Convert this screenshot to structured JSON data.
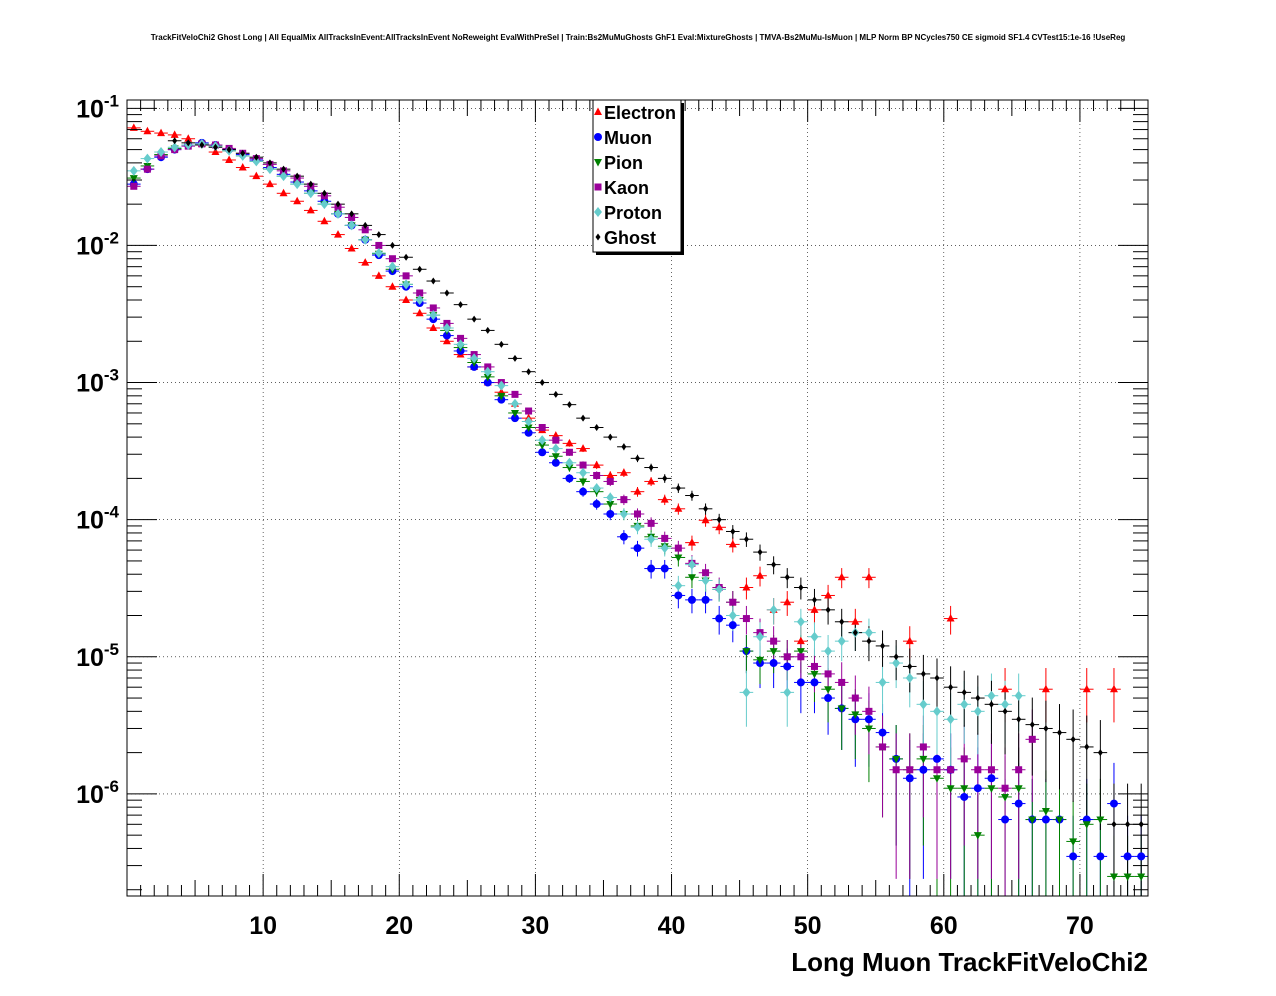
{
  "chart_data": {
    "type": "scatter",
    "title": "TrackFitVeloChi2 Ghost Long | All EqualMix AllTracksInEvent:AllTracksInEvent NoReweight EvalWithPreSel | Train:Bs2MuMuGhosts GhF1 Eval:MixtureGhosts | TMVA-Bs2MuMu-IsMuon | MLP Norm BP NCycles750 CE sigmoid SF1.4 CVTest15:1e-16 !UseReg",
    "xlabel": "Long Muon TrackFitVeloChi2",
    "ylabel": "",
    "xlim": [
      0,
      75
    ],
    "ylim": [
      1.8e-07,
      0.115
    ],
    "yscale": "log",
    "grid": true,
    "legend_position": "top-center",
    "x_ticks": [
      {
        "value": 10,
        "label": "10"
      },
      {
        "value": 20,
        "label": "20"
      },
      {
        "value": 30,
        "label": "30"
      },
      {
        "value": 40,
        "label": "40"
      },
      {
        "value": 50,
        "label": "50"
      },
      {
        "value": 60,
        "label": "60"
      },
      {
        "value": 70,
        "label": "70"
      }
    ],
    "y_ticks": [
      {
        "value": 0.1,
        "base": "10",
        "exp": "-1"
      },
      {
        "value": 0.01,
        "base": "10",
        "exp": "-2"
      },
      {
        "value": 0.001,
        "base": "10",
        "exp": "-3"
      },
      {
        "value": 0.0001,
        "base": "10",
        "exp": "-4"
      },
      {
        "value": 1e-05,
        "base": "10",
        "exp": "-5"
      },
      {
        "value": 1e-06,
        "base": "10",
        "exp": "-6"
      }
    ],
    "series": [
      {
        "name": "Electron",
        "color": "#ff0000",
        "marker": "triangle-up",
        "x": [
          0.5,
          1.5,
          2.5,
          3.5,
          4.5,
          5.5,
          6.5,
          7.5,
          8.5,
          9.5,
          10.5,
          11.5,
          12.5,
          13.5,
          14.5,
          15.5,
          16.5,
          17.5,
          18.5,
          19.5,
          20.5,
          21.5,
          22.5,
          23.5,
          24.5,
          25.5,
          26.5,
          27.5,
          28.5,
          29.5,
          30.5,
          31.5,
          32.5,
          33.5,
          34.5,
          35.5,
          36.5,
          37.5,
          38.5,
          39.5,
          40.5,
          41.5,
          42.5,
          43.5,
          44.5,
          45.5,
          46.5,
          47.5,
          48.5,
          49.5,
          50.5,
          51.5,
          52.5,
          53.5,
          54.5,
          57.5,
          60.5,
          64.5,
          67.5,
          70.5,
          72.5
        ],
        "y": [
          0.072,
          0.068,
          0.066,
          0.064,
          0.06,
          0.055,
          0.048,
          0.042,
          0.037,
          0.032,
          0.028,
          0.024,
          0.021,
          0.018,
          0.015,
          0.012,
          0.0095,
          0.0075,
          0.006,
          0.005,
          0.004,
          0.0032,
          0.0025,
          0.002,
          0.0016,
          0.0013,
          0.001,
          0.00085,
          0.0007,
          0.00055,
          0.00045,
          0.00041,
          0.00036,
          0.00033,
          0.00025,
          0.00021,
          0.00022,
          0.00016,
          0.00019,
          0.00014,
          0.00012,
          6.8e-05,
          9.9e-05,
          8.8e-05,
          6.6e-05,
          3.2e-05,
          3.9e-05,
          2.2e-05,
          2.5e-05,
          1.3e-05,
          2.2e-05,
          2.8e-05,
          3.8e-05,
          1.8e-05,
          3.8e-05,
          1.3e-05,
          1.9e-05,
          5.8e-06,
          5.8e-06,
          5.8e-06,
          5.8e-06
        ]
      },
      {
        "name": "Muon",
        "color": "#0000ff",
        "marker": "circle",
        "x": [
          0.5,
          1.5,
          2.5,
          3.5,
          4.5,
          5.5,
          6.5,
          7.5,
          8.5,
          9.5,
          10.5,
          11.5,
          12.5,
          13.5,
          14.5,
          15.5,
          16.5,
          17.5,
          18.5,
          19.5,
          20.5,
          21.5,
          22.5,
          23.5,
          24.5,
          25.5,
          26.5,
          27.5,
          28.5,
          29.5,
          30.5,
          31.5,
          32.5,
          33.5,
          34.5,
          35.5,
          36.5,
          37.5,
          38.5,
          39.5,
          40.5,
          41.5,
          42.5,
          43.5,
          44.5,
          45.5,
          46.5,
          47.5,
          48.5,
          49.5,
          50.5,
          51.5,
          52.5,
          53.5,
          54.5,
          55.5,
          56.5,
          57.5,
          58.5,
          59.5,
          60.5,
          61.5,
          62.5,
          63.5,
          64.5,
          65.5,
          66.5,
          67.5,
          68.5,
          69.5,
          70.5,
          71.5,
          72.5,
          73.5,
          74.5
        ],
        "y": [
          0.028,
          0.036,
          0.044,
          0.05,
          0.054,
          0.056,
          0.054,
          0.05,
          0.046,
          0.042,
          0.037,
          0.033,
          0.029,
          0.025,
          0.021,
          0.017,
          0.014,
          0.011,
          0.0085,
          0.0065,
          0.005,
          0.0038,
          0.0029,
          0.0022,
          0.0017,
          0.0013,
          0.001,
          0.00075,
          0.00055,
          0.00043,
          0.00031,
          0.00026,
          0.0002,
          0.00016,
          0.00013,
          0.00011,
          7.5e-05,
          6.2e-05,
          4.4e-05,
          4.4e-05,
          2.8e-05,
          2.6e-05,
          2.6e-05,
          1.9e-05,
          1.7e-05,
          1.1e-05,
          9e-06,
          9e-06,
          8.5e-06,
          6.5e-06,
          6.5e-06,
          5e-06,
          4.2e-06,
          3.5e-06,
          3.5e-06,
          2.8e-06,
          1.8e-06,
          1.3e-06,
          1.5e-06,
          1.8e-06,
          1.5e-06,
          9.5e-07,
          1.1e-06,
          1.3e-06,
          6.5e-07,
          8.5e-07,
          6.5e-07,
          6.5e-07,
          6.5e-07,
          3.5e-07,
          6.5e-07,
          3.5e-07,
          8.5e-07,
          3.5e-07,
          3.5e-07
        ]
      },
      {
        "name": "Pion",
        "color": "#008000",
        "marker": "triangle-down",
        "x": [
          0.5,
          1.5,
          2.5,
          3.5,
          4.5,
          5.5,
          6.5,
          7.5,
          8.5,
          9.5,
          10.5,
          11.5,
          12.5,
          13.5,
          14.5,
          15.5,
          16.5,
          17.5,
          18.5,
          19.5,
          20.5,
          21.5,
          22.5,
          23.5,
          24.5,
          25.5,
          26.5,
          27.5,
          28.5,
          29.5,
          30.5,
          31.5,
          32.5,
          33.5,
          34.5,
          35.5,
          36.5,
          37.5,
          38.5,
          39.5,
          40.5,
          41.5,
          42.5,
          43.5,
          44.5,
          45.5,
          46.5,
          47.5,
          48.5,
          49.5,
          50.5,
          51.5,
          52.5,
          53.5,
          54.5,
          55.5,
          56.5,
          57.5,
          58.5,
          59.5,
          60.5,
          61.5,
          62.5,
          63.5,
          64.5,
          65.5,
          66.5,
          67.5,
          68.5,
          69.5,
          70.5,
          71.5,
          72.5,
          73.5,
          74.5
        ],
        "y": [
          0.031,
          0.038,
          0.046,
          0.051,
          0.054,
          0.055,
          0.053,
          0.049,
          0.045,
          0.041,
          0.036,
          0.032,
          0.028,
          0.024,
          0.02,
          0.017,
          0.014,
          0.011,
          0.0087,
          0.0067,
          0.0052,
          0.004,
          0.0031,
          0.0024,
          0.0018,
          0.0014,
          0.0011,
          0.0008,
          0.0006,
          0.00047,
          0.00035,
          0.00029,
          0.00024,
          0.00019,
          0.00016,
          0.00013,
          0.00011,
          9e-05,
          7.5e-05,
          6.4e-05,
          5.3e-05,
          3.8e-05,
          3.6e-05,
          3.1e-05,
          2.5e-05,
          1.1e-05,
          9.5e-06,
          1.1e-05,
          1e-05,
          1.1e-05,
          7.5e-06,
          5.8e-06,
          4.2e-06,
          3.8e-06,
          3e-06,
          2.2e-06,
          1.8e-06,
          1.5e-06,
          1.8e-06,
          1.3e-06,
          1.1e-06,
          1.1e-06,
          5e-07,
          1.1e-06,
          9.5e-07,
          1.1e-06,
          6.5e-07,
          7.5e-07,
          6.5e-07,
          4.5e-07,
          6e-07,
          6.5e-07,
          2.5e-07,
          2.5e-07,
          2.5e-07
        ]
      },
      {
        "name": "Kaon",
        "color": "#990099",
        "marker": "square",
        "x": [
          0.5,
          1.5,
          2.5,
          3.5,
          4.5,
          5.5,
          6.5,
          7.5,
          8.5,
          9.5,
          10.5,
          11.5,
          12.5,
          13.5,
          14.5,
          15.5,
          16.5,
          17.5,
          18.5,
          19.5,
          20.5,
          21.5,
          22.5,
          23.5,
          24.5,
          25.5,
          26.5,
          27.5,
          28.5,
          29.5,
          30.5,
          31.5,
          32.5,
          33.5,
          34.5,
          35.5,
          36.5,
          37.5,
          38.5,
          39.5,
          40.5,
          41.5,
          42.5,
          43.5,
          44.5,
          45.5,
          46.5,
          47.5,
          48.5,
          49.5,
          50.5,
          51.5,
          52.5,
          53.5,
          54.5,
          55.5,
          56.5,
          57.5,
          58.5,
          59.5,
          60.5,
          61.5,
          62.5,
          63.5,
          64.5,
          65.5,
          66.5
        ],
        "y": [
          0.027,
          0.036,
          0.045,
          0.05,
          0.053,
          0.055,
          0.054,
          0.051,
          0.047,
          0.043,
          0.039,
          0.035,
          0.031,
          0.027,
          0.023,
          0.019,
          0.016,
          0.013,
          0.01,
          0.008,
          0.006,
          0.0045,
          0.0035,
          0.0027,
          0.0021,
          0.0016,
          0.0013,
          0.001,
          0.00082,
          0.00062,
          0.00047,
          0.00038,
          0.00031,
          0.00025,
          0.00021,
          0.00019,
          0.00014,
          0.00011,
          9.4e-05,
          7.3e-05,
          6.2e-05,
          4.8e-05,
          4.1e-05,
          3.2e-05,
          2.5e-05,
          1.9e-05,
          1.5e-05,
          1.3e-05,
          1e-05,
          1e-05,
          8.5e-06,
          7.5e-06,
          6.5e-06,
          5e-06,
          4e-06,
          2.2e-06,
          1.5e-06,
          1.5e-06,
          2.2e-06,
          1.5e-06,
          1.5e-06,
          1.8e-06,
          1.5e-06,
          1.5e-06,
          1.1e-06,
          1.5e-06,
          2.5e-06
        ]
      },
      {
        "name": "Proton",
        "color": "#66cccc",
        "marker": "diamond",
        "x": [
          0.5,
          1.5,
          2.5,
          3.5,
          4.5,
          5.5,
          6.5,
          7.5,
          8.5,
          9.5,
          10.5,
          11.5,
          12.5,
          13.5,
          14.5,
          15.5,
          16.5,
          17.5,
          18.5,
          19.5,
          20.5,
          21.5,
          22.5,
          23.5,
          24.5,
          25.5,
          26.5,
          27.5,
          28.5,
          29.5,
          30.5,
          31.5,
          32.5,
          33.5,
          34.5,
          35.5,
          36.5,
          37.5,
          38.5,
          39.5,
          40.5,
          41.5,
          42.5,
          43.5,
          44.5,
          45.5,
          46.5,
          47.5,
          48.5,
          49.5,
          50.5,
          51.5,
          52.5,
          53.5,
          54.5,
          55.5,
          56.5,
          57.5,
          58.5,
          59.5,
          60.5,
          61.5,
          62.5,
          63.5,
          64.5,
          65.5
        ],
        "y": [
          0.035,
          0.043,
          0.048,
          0.052,
          0.054,
          0.055,
          0.053,
          0.049,
          0.045,
          0.041,
          0.036,
          0.032,
          0.028,
          0.024,
          0.02,
          0.017,
          0.014,
          0.011,
          0.0088,
          0.007,
          0.0052,
          0.004,
          0.0031,
          0.0025,
          0.0019,
          0.0015,
          0.0012,
          0.00095,
          0.0007,
          0.00052,
          0.00038,
          0.00033,
          0.00026,
          0.00022,
          0.00017,
          0.000145,
          0.00011,
          8.8e-05,
          7.2e-05,
          6.2e-05,
          3.3e-05,
          4.7e-05,
          3.6e-05,
          3.1e-05,
          2e-05,
          5.5e-06,
          1.4e-05,
          2.2e-05,
          5.5e-06,
          1.8e-05,
          1.4e-05,
          1.1e-05,
          1.3e-05,
          1.5e-05,
          1.5e-05,
          6.5e-06,
          9e-06,
          7e-06,
          4.5e-06,
          4e-06,
          3.5e-06,
          4.5e-06,
          4e-06,
          5.2e-06,
          4.5e-06,
          5.2e-06
        ]
      },
      {
        "name": "Ghost",
        "color": "#000000",
        "marker": "small-diamond",
        "x": [
          3.5,
          4.5,
          5.5,
          6.5,
          7.5,
          8.5,
          9.5,
          10.5,
          11.5,
          12.5,
          13.5,
          14.5,
          15.5,
          16.5,
          17.5,
          18.5,
          19.5,
          20.5,
          21.5,
          22.5,
          23.5,
          24.5,
          25.5,
          26.5,
          27.5,
          28.5,
          29.5,
          30.5,
          31.5,
          32.5,
          33.5,
          34.5,
          35.5,
          36.5,
          37.5,
          38.5,
          39.5,
          40.5,
          41.5,
          42.5,
          43.5,
          44.5,
          45.5,
          46.5,
          47.5,
          48.5,
          49.5,
          50.5,
          51.5,
          52.5,
          53.5,
          54.5,
          55.5,
          56.5,
          57.5,
          58.5,
          59.5,
          60.5,
          61.5,
          62.5,
          63.5,
          64.5,
          65.5,
          66.5,
          67.5,
          68.5,
          69.5,
          70.5,
          71.5,
          72.5,
          73.5,
          74.5
        ],
        "y": [
          0.058,
          0.056,
          0.054,
          0.052,
          0.05,
          0.047,
          0.044,
          0.04,
          0.036,
          0.032,
          0.028,
          0.024,
          0.02,
          0.017,
          0.014,
          0.012,
          0.01,
          0.0082,
          0.0067,
          0.0055,
          0.0045,
          0.0037,
          0.0029,
          0.0024,
          0.0019,
          0.0015,
          0.0012,
          0.001,
          0.00082,
          0.00069,
          0.00055,
          0.00047,
          0.0004,
          0.00034,
          0.00028,
          0.00024,
          0.0002,
          0.00017,
          0.00015,
          0.00012,
          0.0001,
          8.2e-05,
          7.2e-05,
          5.8e-05,
          4.7e-05,
          3.8e-05,
          3.2e-05,
          2.6e-05,
          2.2e-05,
          1.8e-05,
          1.5e-05,
          1.3e-05,
          1.2e-05,
          1e-05,
          8.5e-06,
          7.5e-06,
          7e-06,
          6e-06,
          5.5e-06,
          5e-06,
          4.5e-06,
          4e-06,
          3.5e-06,
          3.2e-06,
          3e-06,
          2.8e-06,
          2.5e-06,
          2.2e-06,
          2e-06,
          6e-07,
          6e-07,
          6e-07
        ]
      }
    ]
  }
}
